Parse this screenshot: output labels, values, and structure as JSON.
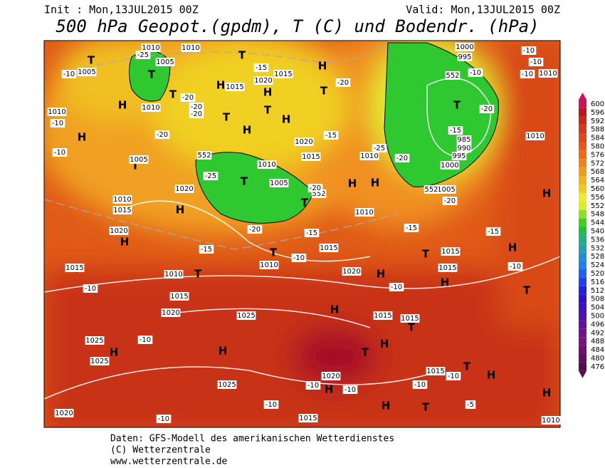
{
  "header": {
    "init": "Init : Mon,13JUL2015 00Z",
    "valid": "Valid: Mon,13JUL2015 00Z",
    "title": "500 hPa Geopot.(gpdm), T (C) und Bodendr. (hPa)"
  },
  "footer": [
    "Daten: GFS-Modell des amerikanischen Wetterdienstes",
    "(C) Wetterzentrale",
    "www.wetterzentrale.de"
  ],
  "colorbar": {
    "labels": [
      600,
      596,
      592,
      588,
      584,
      580,
      576,
      572,
      568,
      564,
      560,
      556,
      552,
      548,
      544,
      540,
      536,
      532,
      528,
      524,
      520,
      516,
      512,
      508,
      504,
      500,
      496,
      492,
      488,
      484,
      480,
      476
    ],
    "colors": [
      "#d0105a",
      "#b81818",
      "#c82818",
      "#d83818",
      "#e04818",
      "#e85818",
      "#f06a18",
      "#f08418",
      "#f09c18",
      "#f0b418",
      "#f0cc18",
      "#f0e830",
      "#d8f020",
      "#90e020",
      "#40d020",
      "#20c040",
      "#20b080",
      "#20a0b0",
      "#2090d0",
      "#2080f0",
      "#2060f0",
      "#2040f0",
      "#2020e0",
      "#3010d0",
      "#4010c0",
      "#5010b0",
      "#6010a0",
      "#701090",
      "#801080",
      "#701070",
      "#601060",
      "#501050"
    ]
  },
  "map_labels": [
    "T",
    "T",
    "H",
    "H",
    "T",
    "T",
    "H",
    "H",
    "T",
    "T",
    "H",
    "T",
    "T",
    "H",
    "H",
    "T",
    "H",
    "T",
    "T",
    "T",
    "H",
    "T",
    "T",
    "H",
    "H",
    "H",
    "H",
    "T",
    "H",
    "H",
    "T",
    "H",
    "T",
    "T",
    "H",
    "H",
    "T",
    "H",
    "H",
    "H",
    "T",
    "H",
    "H",
    "1010",
    "1005",
    "1005",
    "1010",
    "1010",
    "1010",
    "1020",
    "1015",
    "1015",
    "1020",
    "1015",
    "1010",
    "1010",
    "1010",
    "1005",
    "1005",
    "1020",
    "1010",
    "1015",
    "1020",
    "1015",
    "1010",
    "1020",
    "1010",
    "1015",
    "1020",
    "1015",
    "1025",
    "1025",
    "1025",
    "1025",
    "1020",
    "1015",
    "1015",
    "1015",
    "1015",
    "1015",
    "1015",
    "1020",
    "1010",
    "1010",
    "1010",
    "1000",
    "995",
    "985",
    "990",
    "995",
    "1000",
    "1005",
    "552",
    "552",
    "552",
    "552",
    "-25",
    "-20",
    "-20",
    "-20",
    "-15",
    "-20",
    "-15",
    "-25",
    "-20",
    "-10",
    "-20",
    "-15",
    "-25",
    "-20",
    "-20",
    "-15",
    "-15",
    "-20",
    "-15",
    "-10",
    "-10",
    "-10",
    "-10",
    "-10",
    "-10",
    "-20",
    "-15",
    "-10",
    "-10",
    "-10",
    "-10",
    "-10",
    "-10",
    "-10",
    "-10",
    "-5",
    "-10",
    "-10",
    "-10"
  ]
}
